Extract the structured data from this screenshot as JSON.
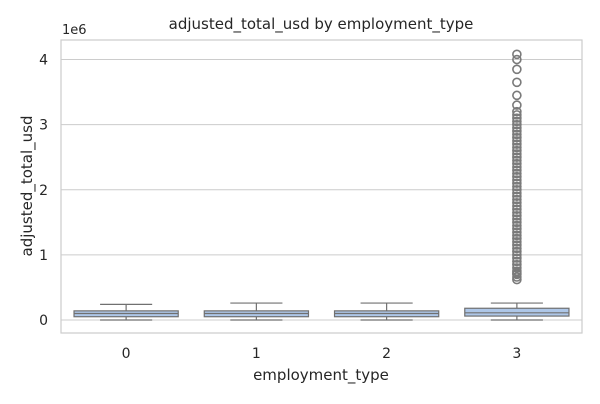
{
  "chart_data": {
    "type": "box",
    "title": "adjusted_total_usd by employment_type",
    "xlabel": "employment_type",
    "ylabel": "adjusted_total_usd",
    "y_offset_label": "1e6",
    "ylim": [
      -200000,
      4300000
    ],
    "y_ticks": [
      0,
      1,
      2,
      3,
      4
    ],
    "y_tick_scale": 1000000,
    "categories": [
      "0",
      "1",
      "2",
      "3"
    ],
    "grid": true,
    "box_color": "#aec7e8",
    "line_color": "#707070",
    "boxes": [
      {
        "category": "0",
        "whislo": 0,
        "q1": 50000,
        "med": 100000,
        "q3": 140000,
        "whishi": 240000,
        "fliers": []
      },
      {
        "category": "1",
        "whislo": 0,
        "q1": 50000,
        "med": 100000,
        "q3": 140000,
        "whishi": 260000,
        "fliers": []
      },
      {
        "category": "2",
        "whislo": 0,
        "q1": 50000,
        "med": 100000,
        "q3": 140000,
        "whishi": 260000,
        "fliers": []
      },
      {
        "category": "3",
        "whislo": 0,
        "q1": 60000,
        "med": 110000,
        "q3": 180000,
        "whishi": 260000,
        "fliers": [
          620000,
          660000,
          700000,
          720000,
          750000,
          800000,
          850000,
          900000,
          950000,
          1000000,
          1050000,
          1100000,
          1150000,
          1200000,
          1250000,
          1300000,
          1350000,
          1400000,
          1450000,
          1500000,
          1550000,
          1600000,
          1650000,
          1700000,
          1750000,
          1800000,
          1850000,
          1900000,
          1950000,
          2000000,
          2050000,
          2100000,
          2150000,
          2200000,
          2250000,
          2300000,
          2350000,
          2400000,
          2450000,
          2500000,
          2550000,
          2600000,
          2650000,
          2700000,
          2750000,
          2800000,
          2850000,
          2900000,
          2950000,
          3000000,
          3050000,
          3100000,
          3150000,
          3200000,
          3300000,
          3450000,
          3650000,
          3850000,
          4000000,
          4080000
        ]
      }
    ]
  }
}
